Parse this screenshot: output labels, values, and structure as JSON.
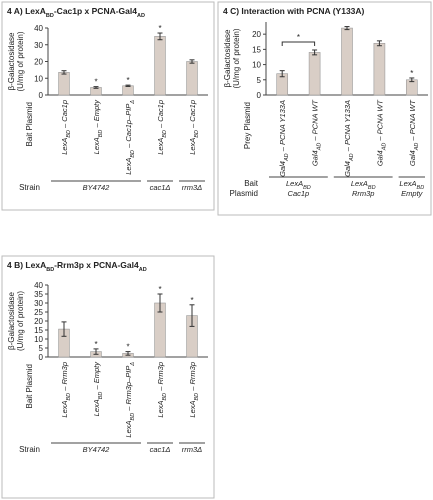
{
  "chart_data": [
    {
      "type": "bar",
      "title": [
        "4 A) LexA",
        "BD",
        "-Cac1p x PCNA-Gal4",
        "AD"
      ],
      "ylabel": [
        "β-Galactosidase",
        "(U/mg of protein)"
      ],
      "xlabel": "Bait Plasmid",
      "ylim": [
        0,
        40
      ],
      "yticks": [
        0,
        10,
        20,
        30,
        40
      ],
      "categories": [
        [
          "LexA",
          "BD",
          " – Cac1p"
        ],
        [
          "LexA",
          "BD",
          " – Empty"
        ],
        [
          "LexA",
          "BD",
          " – Cac1p–PIP",
          "Δ"
        ],
        [
          "LexA",
          "BD",
          " – Cac1p"
        ],
        [
          "LexA",
          "BD",
          " – Cac1p"
        ]
      ],
      "values": [
        13.5,
        4.5,
        5.5,
        35,
        20
      ],
      "errors": [
        1,
        0.5,
        0.4,
        2,
        1
      ],
      "color": "#d9cec6",
      "significant": [
        false,
        true,
        true,
        true,
        false
      ],
      "star": "*",
      "row_label": [
        "Strain"
      ],
      "groups": [
        {
          "label": [
            [
              "BY4742"
            ]
          ],
          "span": [
            0,
            2
          ]
        },
        {
          "label": [
            [
              "cac1Δ"
            ]
          ],
          "span": [
            3,
            3
          ]
        },
        {
          "label": [
            [
              "rrm3Δ"
            ]
          ],
          "span": [
            4,
            4
          ]
        }
      ]
    },
    {
      "type": "bar",
      "title": [
        "4 C) Interaction with PCNA (Y133A)"
      ],
      "ylabel": [
        "β-Galactosidase",
        "(U/mg of protein)"
      ],
      "xlabel": "Prey Plasmid",
      "ylim": [
        0,
        24
      ],
      "yticks": [
        0,
        5,
        10,
        15,
        20
      ],
      "categories": [
        [
          "Gal4",
          "AD",
          " – PCNA Y133A"
        ],
        [
          "Gal4",
          "AD",
          " – PCNA WT"
        ],
        [
          "Gal4",
          "AD",
          " – PCNA Y133A"
        ],
        [
          "Gal4",
          "AD",
          " – PCNA WT"
        ],
        [
          "Gal4",
          "AD",
          " – PCNA WT"
        ]
      ],
      "values": [
        7,
        14,
        22,
        17,
        5
      ],
      "errors": [
        1,
        0.8,
        0.5,
        0.8,
        0.6
      ],
      "color": "#d9cec6",
      "significant": [
        false,
        false,
        false,
        false,
        true
      ],
      "star": "*",
      "bracket": [
        0,
        1
      ],
      "row_label": [
        "Bait",
        "Plasmid"
      ],
      "groups": [
        {
          "label": [
            [
              "LexA",
              "BD"
            ],
            [
              "Cac1p"
            ]
          ],
          "span": [
            0,
            1
          ]
        },
        {
          "label": [
            [
              "LexA",
              "BD"
            ],
            [
              "Rrm3p"
            ]
          ],
          "span": [
            2,
            3
          ]
        },
        {
          "label": [
            [
              "LexA",
              "BD"
            ],
            [
              "Empty"
            ]
          ],
          "span": [
            4,
            4
          ]
        }
      ]
    },
    {
      "type": "bar",
      "title": [
        "4 B) LexA",
        "BD",
        "-Rrm3p x PCNA-Gal4",
        "AD"
      ],
      "ylabel": [
        "β-Galactosidase",
        "(U/mg of protein)"
      ],
      "xlabel": "Bait Plasmid",
      "ylim": [
        0,
        40
      ],
      "yticks": [
        0,
        5,
        10,
        15,
        20,
        25,
        30,
        35,
        40
      ],
      "categories": [
        [
          "LexA",
          "BD",
          " – Rrm3p"
        ],
        [
          "LexA",
          "BD",
          " – Empty"
        ],
        [
          "LexA",
          "BD",
          " – Rrm3p–PIP",
          "Δ"
        ],
        [
          "LexA",
          "BD",
          " – Rrm3p"
        ],
        [
          "LexA",
          "BD",
          " – Rrm3p"
        ]
      ],
      "values": [
        15.5,
        3,
        2,
        30,
        23
      ],
      "errors": [
        4,
        1.5,
        1,
        5,
        6
      ],
      "color": "#d9cec6",
      "significant": [
        false,
        true,
        true,
        true,
        true
      ],
      "star": "*",
      "row_label": [
        "Strain"
      ],
      "groups": [
        {
          "label": [
            [
              "BY4742"
            ]
          ],
          "span": [
            0,
            2
          ]
        },
        {
          "label": [
            [
              "cac1Δ"
            ]
          ],
          "span": [
            3,
            3
          ]
        },
        {
          "label": [
            [
              "rrm3Δ"
            ]
          ],
          "span": [
            4,
            4
          ]
        }
      ]
    }
  ]
}
